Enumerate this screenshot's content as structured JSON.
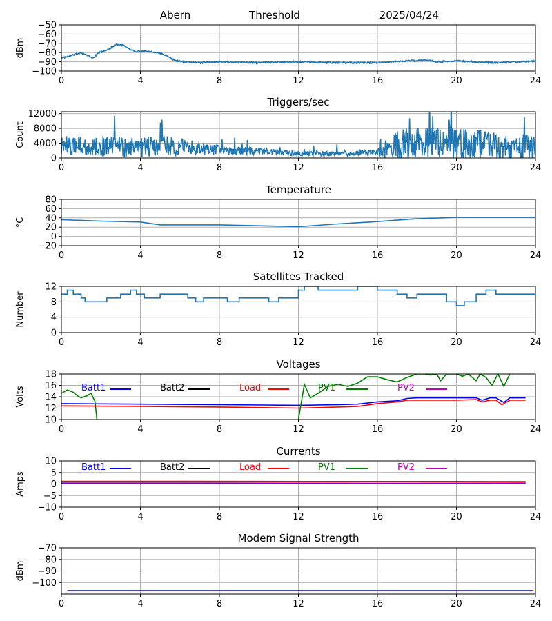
{
  "header": {
    "station": "Abern",
    "mode": "Threshold",
    "date": "2025/04/24"
  },
  "colors": {
    "series": "#1f77b4",
    "grid": "#b0b0b0",
    "batt1": "#0000ff",
    "batt2": "#000000",
    "load": "#ff0000",
    "pv1": "#008000",
    "pv2": "#bf00bf"
  },
  "chart_data": [
    {
      "id": "threshold",
      "type": "line",
      "title": "",
      "xlabel": "",
      "ylabel": "dBm",
      "xlim": [
        0,
        24
      ],
      "ylim": [
        -100,
        -50
      ],
      "xticks": [
        0,
        4,
        8,
        12,
        16,
        20,
        24
      ],
      "yticks": [
        -100,
        -90,
        -80,
        -70,
        -60,
        -50
      ],
      "grid": true,
      "series": [
        {
          "color": "#1f77b4",
          "noise": 0.8,
          "points": [
            [
              0,
              -86
            ],
            [
              0.4,
              -84
            ],
            [
              0.7,
              -82
            ],
            [
              1.0,
              -80
            ],
            [
              1.3,
              -83
            ],
            [
              1.6,
              -86
            ],
            [
              1.9,
              -80
            ],
            [
              2.2,
              -78
            ],
            [
              2.5,
              -75
            ],
            [
              2.8,
              -71
            ],
            [
              3.1,
              -72
            ],
            [
              3.4,
              -76
            ],
            [
              3.8,
              -79
            ],
            [
              4.2,
              -78
            ],
            [
              4.6,
              -79
            ],
            [
              5.0,
              -81
            ],
            [
              5.4,
              -84
            ],
            [
              5.8,
              -89
            ],
            [
              6.2,
              -90
            ],
            [
              7,
              -91
            ],
            [
              8,
              -90
            ],
            [
              10,
              -91
            ],
            [
              12,
              -90
            ],
            [
              14,
              -91
            ],
            [
              16,
              -91
            ],
            [
              17.5,
              -89
            ],
            [
              18.5,
              -88
            ],
            [
              19,
              -90
            ],
            [
              20,
              -89
            ],
            [
              21,
              -90
            ],
            [
              22,
              -91
            ],
            [
              23,
              -90
            ],
            [
              24,
              -89
            ]
          ]
        }
      ]
    },
    {
      "id": "triggers",
      "type": "line",
      "title": "Triggers/sec",
      "xlabel": "",
      "ylabel": "Count",
      "xlim": [
        0,
        24
      ],
      "ylim": [
        0,
        12500
      ],
      "xticks": [
        0,
        4,
        8,
        12,
        16,
        20,
        24
      ],
      "yticks": [
        0,
        4000,
        8000,
        12000
      ],
      "grid": true,
      "series": [
        {
          "color": "#1f77b4",
          "noise": 2500,
          "noise_profile": [
            [
              0,
              1.0
            ],
            [
              5,
              1.2
            ],
            [
              8,
              0.5
            ],
            [
              10,
              0.35
            ],
            [
              12,
              0.25
            ],
            [
              16,
              0.35
            ],
            [
              16.8,
              1.6
            ],
            [
              20,
              1.8
            ],
            [
              24,
              1.4
            ]
          ],
          "points": [
            [
              0,
              3500
            ],
            [
              2,
              3200
            ],
            [
              4,
              3000
            ],
            [
              6,
              3200
            ],
            [
              8,
              2200
            ],
            [
              10,
              1800
            ],
            [
              12,
              1200
            ],
            [
              14,
              1300
            ],
            [
              16,
              1400
            ],
            [
              17,
              3500
            ],
            [
              18.5,
              4500
            ],
            [
              20,
              4000
            ],
            [
              22,
              3000
            ],
            [
              24,
              2800
            ]
          ]
        }
      ]
    },
    {
      "id": "temperature",
      "type": "line",
      "title": "Temperature",
      "xlabel": "",
      "ylabel": "°C",
      "xlim": [
        0,
        24
      ],
      "ylim": [
        -20,
        80
      ],
      "xticks": [
        0,
        4,
        8,
        12,
        16,
        20,
        24
      ],
      "yticks": [
        -20,
        0,
        20,
        40,
        60,
        80
      ],
      "grid": true,
      "series": [
        {
          "color": "#1f77b4",
          "noise": 0,
          "points": [
            [
              0,
              36
            ],
            [
              2,
              33
            ],
            [
              4,
              31
            ],
            [
              5,
              25
            ],
            [
              8,
              25
            ],
            [
              10,
              23
            ],
            [
              12,
              21
            ],
            [
              14,
              27
            ],
            [
              16,
              32
            ],
            [
              17,
              35
            ],
            [
              18,
              38
            ],
            [
              20,
              41
            ],
            [
              22,
              41
            ],
            [
              24,
              41
            ]
          ]
        }
      ]
    },
    {
      "id": "satellites",
      "type": "line",
      "title": "Satellites Tracked",
      "xlabel": "",
      "ylabel": "Number",
      "xlim": [
        0,
        24
      ],
      "ylim": [
        0,
        12
      ],
      "xticks": [
        0,
        4,
        8,
        12,
        16,
        20,
        24
      ],
      "yticks": [
        0,
        4,
        8,
        12
      ],
      "grid": true,
      "series": [
        {
          "color": "#1f77b4",
          "noise": 0,
          "points": [
            [
              0,
              10
            ],
            [
              0.3,
              11
            ],
            [
              0.6,
              10
            ],
            [
              1,
              9
            ],
            [
              1.2,
              8
            ],
            [
              2,
              8
            ],
            [
              2.3,
              9
            ],
            [
              3,
              10
            ],
            [
              3.5,
              11
            ],
            [
              3.8,
              10
            ],
            [
              4.2,
              9
            ],
            [
              5,
              10
            ],
            [
              6,
              10
            ],
            [
              6.4,
              9
            ],
            [
              6.8,
              8
            ],
            [
              7.2,
              9
            ],
            [
              8,
              9
            ],
            [
              8.4,
              8
            ],
            [
              9,
              9
            ],
            [
              10,
              9
            ],
            [
              10.5,
              8
            ],
            [
              11,
              9
            ],
            [
              11.8,
              9
            ],
            [
              12,
              11
            ],
            [
              12.3,
              12
            ],
            [
              13,
              11
            ],
            [
              14,
              11
            ],
            [
              15,
              12
            ],
            [
              16,
              11
            ],
            [
              17,
              10
            ],
            [
              17.5,
              9
            ],
            [
              18,
              10
            ],
            [
              19,
              10
            ],
            [
              19.5,
              8
            ],
            [
              20,
              7
            ],
            [
              20.4,
              8
            ],
            [
              21,
              10
            ],
            [
              21.5,
              11
            ],
            [
              22,
              10
            ],
            [
              23,
              10
            ],
            [
              24,
              10
            ]
          ]
        }
      ]
    },
    {
      "id": "voltages",
      "type": "line",
      "title": "Voltages",
      "xlabel": "",
      "ylabel": "Volts",
      "xlim": [
        0,
        24
      ],
      "ylim": [
        10,
        18
      ],
      "xticks": [
        0,
        4,
        8,
        12,
        16,
        20,
        24
      ],
      "yticks": [
        10,
        12,
        14,
        16,
        18
      ],
      "grid": true,
      "legend": [
        "Batt1",
        "Batt2",
        "Load",
        "PV1",
        "PV2"
      ],
      "series": [
        {
          "name": "Batt1",
          "color": "#0000ff",
          "noise": 0,
          "points": [
            [
              0,
              12.8
            ],
            [
              4,
              12.7
            ],
            [
              8,
              12.6
            ],
            [
              12,
              12.5
            ],
            [
              14,
              12.6
            ],
            [
              15,
              12.7
            ],
            [
              16,
              13.1
            ],
            [
              17,
              13.3
            ],
            [
              17.5,
              13.7
            ],
            [
              18,
              13.8
            ],
            [
              20,
              13.8
            ],
            [
              21,
              13.8
            ],
            [
              21.3,
              13.4
            ],
            [
              21.7,
              13.8
            ],
            [
              22,
              13.8
            ],
            [
              22.4,
              13.0
            ],
            [
              22.7,
              13.8
            ],
            [
              23.5,
              13.8
            ]
          ]
        },
        {
          "name": "Load",
          "color": "#ff0000",
          "noise": 0,
          "points": [
            [
              0,
              12.4
            ],
            [
              4,
              12.3
            ],
            [
              8,
              12.2
            ],
            [
              12,
              12.0
            ],
            [
              14,
              12.2
            ],
            [
              15,
              12.3
            ],
            [
              16,
              12.8
            ],
            [
              17,
              13.1
            ],
            [
              17.5,
              13.4
            ],
            [
              18,
              13.4
            ],
            [
              20,
              13.4
            ],
            [
              21,
              13.5
            ],
            [
              21.3,
              13.1
            ],
            [
              21.7,
              13.4
            ],
            [
              22,
              13.4
            ],
            [
              22.3,
              12.6
            ],
            [
              22.7,
              13.4
            ],
            [
              23.5,
              13.4
            ]
          ]
        },
        {
          "name": "PV1",
          "color": "#008000",
          "noise": 0,
          "points": [
            [
              0,
              14.6
            ],
            [
              0.3,
              15.2
            ],
            [
              0.6,
              14.8
            ],
            [
              0.8,
              14.2
            ],
            [
              1.0,
              13.8
            ],
            [
              1.3,
              14.2
            ],
            [
              1.5,
              14.6
            ],
            [
              1.7,
              13.2
            ],
            [
              1.8,
              10.0
            ]
          ]
        },
        {
          "name": "PV1",
          "color": "#008000",
          "noise": 0,
          "points": [
            [
              12,
              10.0
            ],
            [
              12.3,
              16.2
            ],
            [
              12.6,
              13.8
            ],
            [
              13,
              14.6
            ],
            [
              13.5,
              15.8
            ],
            [
              14,
              16.2
            ],
            [
              14.5,
              15.8
            ],
            [
              15,
              16.4
            ],
            [
              15.5,
              17.5
            ],
            [
              16,
              17.5
            ],
            [
              16.5,
              17.0
            ],
            [
              17,
              16.6
            ],
            [
              17.5,
              17.4
            ],
            [
              18,
              18.0
            ],
            [
              18.4,
              18.0
            ],
            [
              18.7,
              17.8
            ],
            [
              19,
              18.0
            ],
            [
              19.2,
              16.8
            ],
            [
              19.5,
              18.0
            ],
            [
              20,
              18.0
            ],
            [
              20.3,
              17.6
            ],
            [
              20.6,
              18.0
            ],
            [
              21,
              16.8
            ],
            [
              21.2,
              18.0
            ],
            [
              21.5,
              17.4
            ],
            [
              21.8,
              16.0
            ],
            [
              22.1,
              18.0
            ],
            [
              22.4,
              15.8
            ],
            [
              22.7,
              18.0
            ]
          ]
        }
      ]
    },
    {
      "id": "currents",
      "type": "line",
      "title": "Currents",
      "xlabel": "",
      "ylabel": "Amps",
      "xlim": [
        0,
        24
      ],
      "ylim": [
        -10,
        10
      ],
      "xticks": [
        0,
        4,
        8,
        12,
        16,
        20,
        24
      ],
      "yticks": [
        -10,
        -5,
        0,
        5,
        10
      ],
      "grid": true,
      "legend": [
        "Batt1",
        "Batt2",
        "Load",
        "PV1",
        "PV2"
      ],
      "series": [
        {
          "name": "Load",
          "color": "#ff0000",
          "noise": 0,
          "points": [
            [
              0,
              1.2
            ],
            [
              6,
              1.2
            ],
            [
              12,
              1.1
            ],
            [
              18,
              1.1
            ],
            [
              23.5,
              1.0
            ]
          ]
        },
        {
          "name": "Batt1",
          "color": "#0000ff",
          "noise": 0,
          "points": [
            [
              0,
              0.4
            ],
            [
              8,
              0.4
            ],
            [
              16,
              0.3
            ],
            [
              23.5,
              0.4
            ]
          ]
        },
        {
          "name": "PV2",
          "color": "#bf00bf",
          "noise": 0,
          "points": [
            [
              0,
              0.1
            ],
            [
              23.5,
              0.1
            ]
          ]
        }
      ]
    },
    {
      "id": "modem",
      "type": "line",
      "title": "Modem Signal Strength",
      "xlabel": "",
      "ylabel": "dBm",
      "xlim": [
        0,
        24
      ],
      "ylim": [
        -110,
        -70
      ],
      "xticks": [
        0,
        4,
        8,
        12,
        16,
        20,
        24
      ],
      "yticks": [
        -100,
        -90,
        -80,
        -70
      ],
      "grid": true,
      "series": [
        {
          "color": "#0000ff",
          "noise": 0,
          "points": [
            [
              0.3,
              -107
            ],
            [
              23.9,
              -107
            ]
          ]
        }
      ]
    }
  ]
}
